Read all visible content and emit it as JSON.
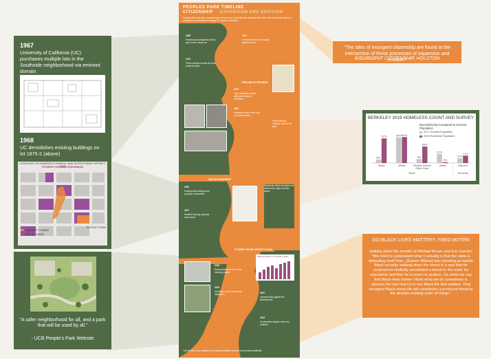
{
  "left": {
    "card1": {
      "year1": "1967",
      "text1": "University of California (UC) purchases multiple lots in the Southside neighborhood via eminent domain",
      "year2": "1968",
      "text2": "UC demolishes existing buildings on lot 1875-2 (above)"
    },
    "card2": {
      "map_title": "LOCATIONS OF UNIVERSITY-OWNED LAND IN SOUTHSIDE DISTRICT, 2010",
      "map_subtitle": "STUDENT HOUSING EXPANSION",
      "label_park": "PEOPLE'S PARK",
      "legend": [
        "UNIVERSITY OWNED",
        "NON-UC OWNED"
      ]
    },
    "card3": {
      "quote": "\"A safer neighborhood for all, and a park that will be used by all.\"",
      "source": "- UCB People's Park Website"
    }
  },
  "poster": {
    "title1": "PEOPLES PARK TIMELINE",
    "title2": "CITIZENSHIP",
    "title3": "EXPANSION AND EROSION",
    "sections": [
      "TIMELINE OF EROSION",
      "ANTI-ENCAMPMENT",
      "STUDENT DEVELOPMENT PLANS"
    ],
    "years": [
      "1969",
      "1970",
      "1972",
      "1979",
      "1991",
      "2008",
      "2017",
      "2018",
      "2019",
      "2020",
      "2022"
    ],
    "chart_caption": "MEDIAN RENTS IN THE BAY AREA",
    "footer": "This timeline was compiled from publicly available sources and archival materials."
  },
  "right": {
    "quote1": {
      "text": "\"The sites of insurgent citizenship are found at the intersection of these processes of expansion and erosion.\"",
      "source": "INSURGENT CITIZENSHIP, HOLSTON"
    },
    "quote2": {
      "title": "DO BLACK LIVES MATTER?, FRED MOTEN",
      "text": "(talking about the murder of Michael Brown and Eric Garner) \"We need to understand what it actually is that the state is defending itself from...[Darren Wilson] was shooting at mobile Black sociality walking down the street in a way that he understood implicitly constituted a threat to the order he represents and that he is sworn to protect...So when we say that Black lives matter I think what we do sometimes is obscure the fact that it's in fact Black life that matters. That insurgent Black social life still constitutes a profound threat to the already existing order of things.\""
    }
  },
  "chart_data": {
    "type": "bar",
    "title": "BERKELEY 2019 HOMELESS COUNT AND SURVEY",
    "subtitle": "Race/Ethnicity Compared to General Population",
    "categories": [
      "Black",
      "White",
      "Multiple Races/ Other Race",
      "Asian",
      "Hispanic"
    ],
    "series": [
      {
        "name": "2017 General Population",
        "values": [
          8,
          59,
          9,
          21,
          11
        ]
      },
      {
        "name": "2019 Homeless Population",
        "values": [
          57,
          60,
          38,
          2,
          17
        ]
      }
    ],
    "category_group_labels": [
      "Race",
      "Ethnicity"
    ],
    "data_labels": [
      [
        "8%",
        "57%"
      ],
      [
        "59%",
        "60%"
      ],
      [
        "9%",
        "38%"
      ],
      [
        "21%",
        "2%"
      ],
      [
        "11%",
        "17%"
      ]
    ],
    "ylim": [
      0,
      70
    ],
    "colors": {
      "general": "#c9c4c6",
      "homeless": "#9a4f7e"
    },
    "legend": "top-right",
    "grid": false
  },
  "colors": {
    "green": "#4f6a45",
    "orange": "#e98a3c",
    "fan": "#d7dccc",
    "fan_orange": "#f6dcb8"
  }
}
